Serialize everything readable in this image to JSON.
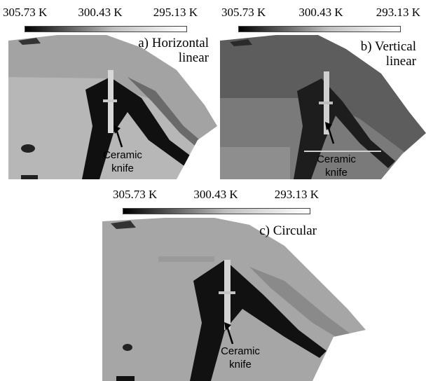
{
  "panels": [
    {
      "scale_labels": [
        "305.73 K",
        "300.43 K",
        "295.13 K"
      ],
      "caption_line1": "a) Horizontal",
      "caption_line2": "linear",
      "knife_line1": "Ceramic",
      "knife_line2": "knife"
    },
    {
      "scale_labels": [
        "305.73 K",
        "300.43 K",
        "293.13 K"
      ],
      "caption_line1": "b) Vertical",
      "caption_line2": "linear",
      "knife_line1": "Ceramic",
      "knife_line2": "knife"
    },
    {
      "scale_labels": [
        "305.73 K",
        "300.43 K",
        "293.13 K"
      ],
      "caption_line1": "c) Circular",
      "caption_line2": "",
      "knife_line1": "Ceramic",
      "knife_line2": "knife"
    }
  ],
  "colors": {
    "hot": "#000000",
    "mid": "#a6a6a6",
    "cool": "#ffffff",
    "tissue": "#8c8c8c"
  }
}
